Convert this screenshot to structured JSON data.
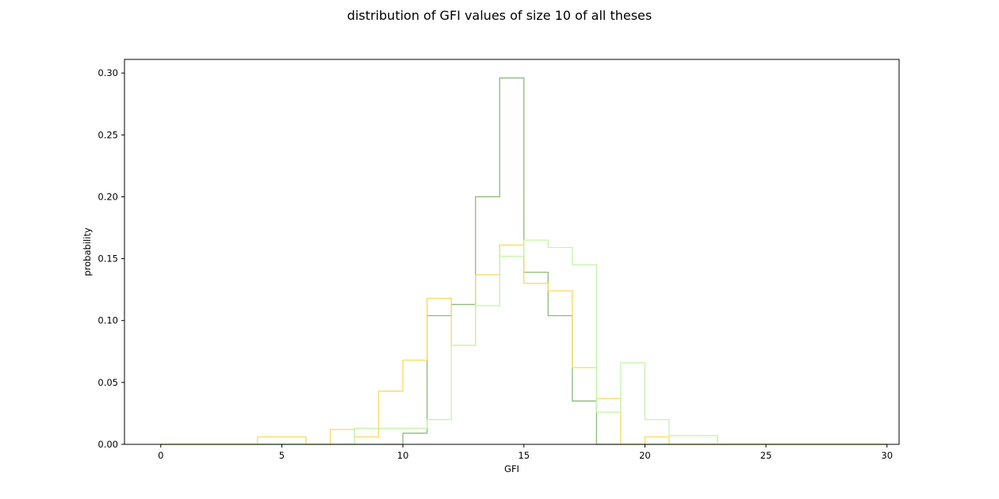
{
  "chart_data": {
    "type": "histogram",
    "title": "distribution of GFI values of size 10 of all theses",
    "xlabel": "GFI",
    "ylabel": "probability",
    "xlim": [
      -1.5,
      30.5
    ],
    "ylim": [
      0,
      0.311
    ],
    "xticks": [
      0,
      5,
      10,
      15,
      20,
      25,
      30
    ],
    "xtick_labels": [
      "0",
      "5",
      "10",
      "15",
      "20",
      "25",
      "30"
    ],
    "yticks": [
      0.0,
      0.05,
      0.1,
      0.15,
      0.2,
      0.25,
      0.3
    ],
    "ytick_labels": [
      "0.00",
      "0.05",
      "0.10",
      "0.15",
      "0.20",
      "0.25",
      "0.30"
    ],
    "grid": false,
    "legend": false,
    "bin_edges": [
      0,
      1,
      2,
      3,
      4,
      5,
      6,
      7,
      8,
      9,
      10,
      11,
      12,
      13,
      14,
      15,
      16,
      17,
      18,
      19,
      20,
      21,
      22,
      23,
      24,
      25,
      26,
      27,
      28,
      29,
      30
    ],
    "series": [
      {
        "color": "#8dbb78",
        "values": [
          0,
          0,
          0,
          0,
          0,
          0,
          0,
          0,
          0,
          0,
          0.009,
          0.104,
          0.113,
          0.2,
          0.296,
          0.139,
          0.104,
          0.035,
          0,
          0,
          0,
          0,
          0,
          0,
          0,
          0,
          0,
          0,
          0,
          0
        ]
      },
      {
        "color": "#f7d95e",
        "values": [
          0,
          0,
          0,
          0,
          0.006,
          0.006,
          0,
          0.012,
          0.006,
          0.043,
          0.068,
          0.118,
          0.08,
          0.137,
          0.161,
          0.13,
          0.124,
          0.062,
          0.037,
          0,
          0.006,
          0,
          0,
          0,
          0,
          0,
          0,
          0,
          0,
          0
        ]
      },
      {
        "color": "#c2f5a8",
        "values": [
          0,
          0,
          0,
          0,
          0,
          0,
          0,
          0,
          0.013,
          0.013,
          0.013,
          0.02,
          0.08,
          0.112,
          0.152,
          0.165,
          0.159,
          0.145,
          0.026,
          0.066,
          0.02,
          0.007,
          0.007,
          0,
          0,
          0,
          0,
          0,
          0,
          0
        ]
      }
    ]
  }
}
